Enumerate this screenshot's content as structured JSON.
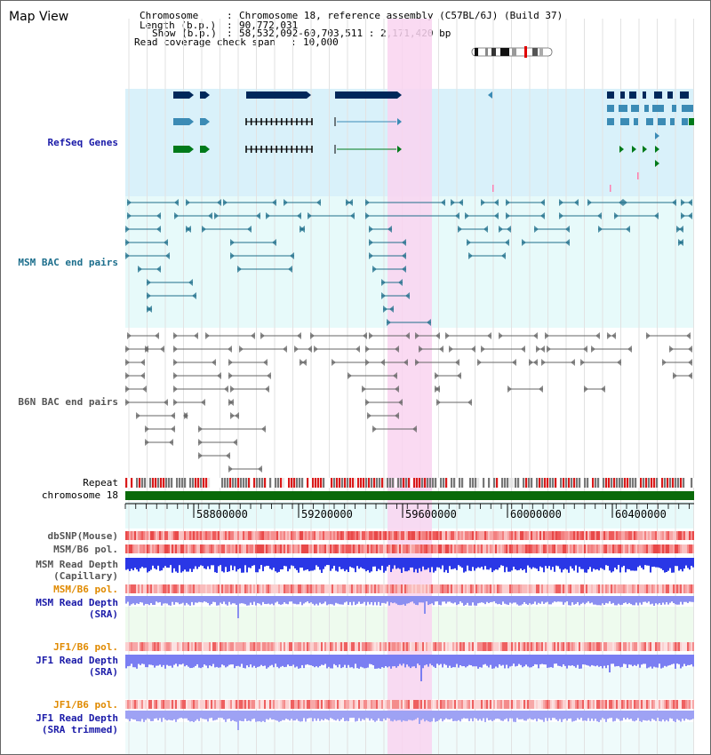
{
  "page": {
    "title": "Map View"
  },
  "info": {
    "chromosome_key": "Chromosome",
    "chromosome_val": "Chromosome 18, reference assembly (C57BL/6J) (Build 37)",
    "length_key": "Length (b.p.)",
    "length_val": "90,772,031",
    "show_key": "Show (b.p.)",
    "show_val": "58,532,092-60,703,511 : 2,171,420 bp",
    "coverage_key": "Read coverage check span",
    "coverage_val": "10,000"
  },
  "tracks": {
    "refseq": "RefSeq Genes",
    "msm_bac": "MSM BAC end pairs",
    "b6n_bac": "B6N BAC end pairs",
    "repeat": "Repeat",
    "chromosome": "chromosome 18",
    "dbsnp": "dbSNP(Mouse)",
    "msm_b6_pol": "MSM/B6 pol.",
    "msm_read_depth_cap_1": "MSM Read Depth",
    "msm_read_depth_cap_2": "(Capillary)",
    "msm_b6_pol_2": "MSM/B6 pol.",
    "msm_read_depth_sra_1": "MSM Read Depth",
    "msm_read_depth_sra_2": "(SRA)",
    "jf1_b6_pol": "JF1/B6 pol.",
    "jf1_read_depth_sra_1": "JF1 Read Depth",
    "jf1_read_depth_sra_2": "(SRA)",
    "jf1_b6_pol_2": "JF1/B6 pol.",
    "jf1_read_depth_trim_1": "JF1 Read Depth",
    "jf1_read_depth_trim_2": "(SRA trimmed)"
  },
  "axis": {
    "ticks": [
      "58800000",
      "59200000",
      "59600000",
      "60000000",
      "60400000"
    ]
  },
  "colors": {
    "refseq_bg": "#d9f1fa",
    "msm_bg": "#e7fafa",
    "highlight": "#f9d3f0",
    "refseq_dark": "#00285a",
    "refseq_mid": "#3b8bb5",
    "refseq_green": "#007a1a",
    "msm_line": "#1f6f8b",
    "b6n_line": "#666666",
    "chromosome_bar": "#0a6a0a",
    "blue_depth": "#2a37e6",
    "label_blue": "#1a1aa8",
    "label_orange": "#e08a00",
    "label_teal": "#1c6e8c"
  }
}
